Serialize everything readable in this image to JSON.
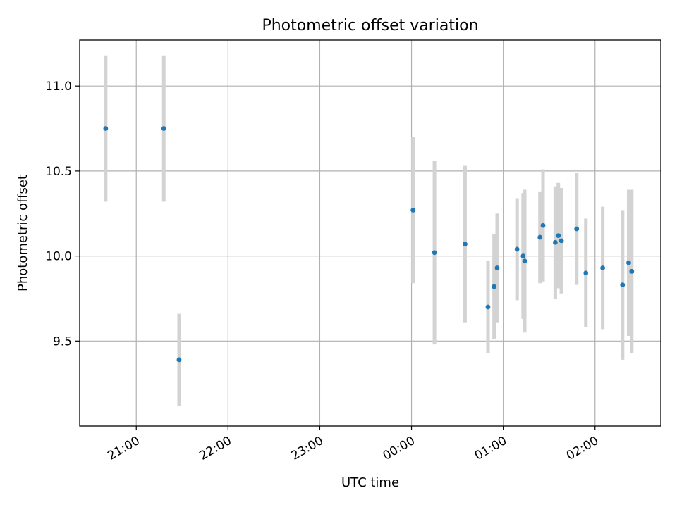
{
  "chart_data": {
    "type": "scatter",
    "title": "Photometric offset variation",
    "xlabel": "UTC time",
    "ylabel": "Photometric offset",
    "x_axis": {
      "kind": "time",
      "start": "20:23",
      "end": "02:43",
      "ticks": [
        {
          "time": "21:00",
          "label": "21:00"
        },
        {
          "time": "22:00",
          "label": "22:00"
        },
        {
          "time": "23:00",
          "label": "23:00"
        },
        {
          "time": "00:00",
          "label": "00:00"
        },
        {
          "time": "01:00",
          "label": "01:00"
        },
        {
          "time": "02:00",
          "label": "02:00"
        }
      ]
    },
    "y_axis": {
      "ylim": [
        9.0,
        11.27
      ],
      "ticks": [
        {
          "value": 9.5,
          "label": "9.5"
        },
        {
          "value": 10.0,
          "label": "10.0"
        },
        {
          "value": 10.5,
          "label": "10.5"
        },
        {
          "value": 11.0,
          "label": "11.0"
        }
      ]
    },
    "grid": true,
    "points_color": "#1f77b4",
    "errorbar_color": "#d3d3d3",
    "points": [
      {
        "t": "20:40",
        "y": 10.75,
        "err": 0.43
      },
      {
        "t": "21:18",
        "y": 10.75,
        "err": 0.43
      },
      {
        "t": "21:28",
        "y": 9.39,
        "err": 0.27
      },
      {
        "t": "00:01",
        "y": 10.27,
        "err": 0.43
      },
      {
        "t": "00:15",
        "y": 10.02,
        "err": 0.54
      },
      {
        "t": "00:35",
        "y": 10.07,
        "err": 0.46
      },
      {
        "t": "00:50",
        "y": 9.7,
        "err": 0.27
      },
      {
        "t": "00:54",
        "y": 9.82,
        "err": 0.31
      },
      {
        "t": "00:56",
        "y": 9.93,
        "err": 0.32
      },
      {
        "t": "01:09",
        "y": 10.04,
        "err": 0.3
      },
      {
        "t": "01:13",
        "y": 10.0,
        "err": 0.37
      },
      {
        "t": "01:14",
        "y": 9.97,
        "err": 0.42
      },
      {
        "t": "01:24",
        "y": 10.11,
        "err": 0.27
      },
      {
        "t": "01:26",
        "y": 10.18,
        "err": 0.33
      },
      {
        "t": "01:34",
        "y": 10.08,
        "err": 0.33
      },
      {
        "t": "01:36",
        "y": 10.12,
        "err": 0.31
      },
      {
        "t": "01:38",
        "y": 10.09,
        "err": 0.31
      },
      {
        "t": "01:48",
        "y": 10.16,
        "err": 0.33
      },
      {
        "t": "01:54",
        "y": 9.9,
        "err": 0.32
      },
      {
        "t": "02:05",
        "y": 9.93,
        "err": 0.36
      },
      {
        "t": "02:18",
        "y": 9.83,
        "err": 0.44
      },
      {
        "t": "02:22",
        "y": 9.96,
        "err": 0.43
      },
      {
        "t": "02:24",
        "y": 9.91,
        "err": 0.48
      }
    ]
  }
}
